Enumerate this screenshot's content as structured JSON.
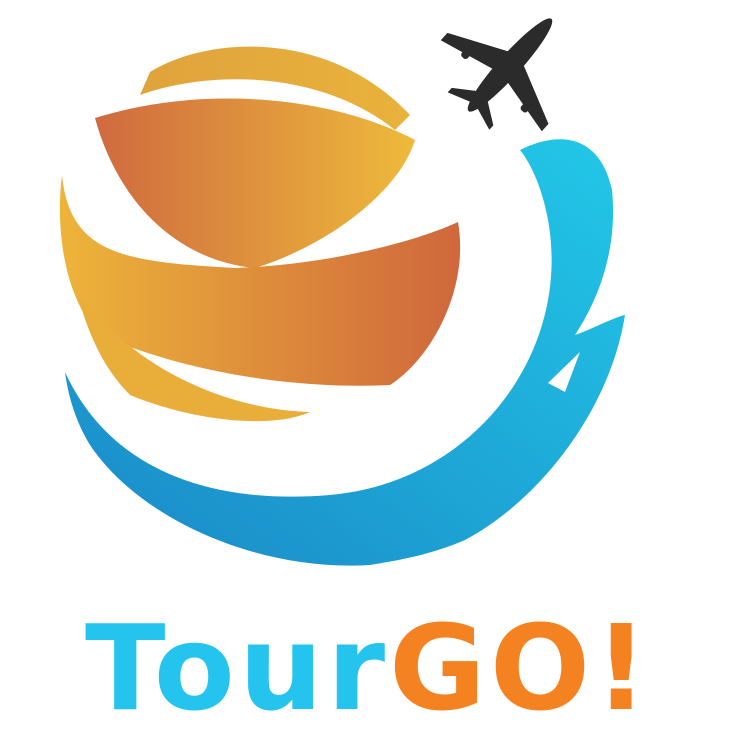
{
  "logo": {
    "wordmark_part1": "Tour",
    "wordmark_part2": "GO!",
    "icons": [
      "globe-icon",
      "airplane-icon",
      "wave-icon"
    ],
    "colors": {
      "orange_dark": "#d4683c",
      "orange_light": "#ecb73a",
      "blue_light": "#22c5e6",
      "blue_dark": "#1b8ec9",
      "plane": "#2b2b2b",
      "wordmark_blue": "#24c4ee",
      "wordmark_orange": "#f58220"
    }
  }
}
